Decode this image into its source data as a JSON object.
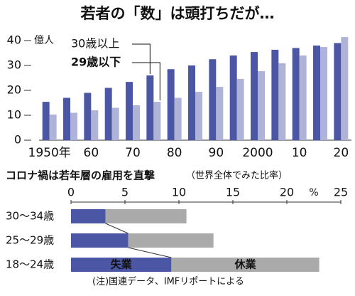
{
  "chart_data": [
    {
      "type": "bar",
      "title": "若者の「数」は頭打ちだが…",
      "y_unit": "億人",
      "categories": [
        "1950年",
        null,
        "60",
        null,
        "70",
        null,
        "80",
        null,
        "90",
        null,
        "2000",
        null,
        "10",
        null,
        "20"
      ],
      "series": [
        {
          "name": "30歳以上",
          "color": "#4b56a5",
          "values": [
            15.4,
            17,
            19,
            21,
            23.4,
            26,
            28.5,
            30,
            32.5,
            34,
            35.4,
            36.3,
            37,
            38,
            39
          ]
        },
        {
          "name": "29歳以下",
          "color": "#afb3d8",
          "values": [
            10.3,
            11,
            12,
            13,
            14,
            15.4,
            17,
            19.4,
            21.4,
            24.6,
            27.7,
            30.9,
            34,
            37.4,
            41.4
          ]
        }
      ],
      "ylim": [
        0,
        42
      ],
      "yticks": [
        0,
        10,
        20,
        30,
        40
      ]
    },
    {
      "type": "hbar-stacked",
      "title": "コロナ禍は若年層の雇用を直撃",
      "subtitle": "（世界全体でみた比率）",
      "x_unit": "%",
      "categories": [
        "30～34歳",
        "25～29歳",
        "18～24歳"
      ],
      "series": [
        {
          "name": "失業",
          "color": "#4b56a5",
          "values": [
            3.2,
            5.3,
            9.3
          ]
        },
        {
          "name": "休業",
          "color": "#aaaaaa",
          "values": [
            7.5,
            7.9,
            13.7
          ]
        }
      ],
      "xlim": [
        0,
        25
      ],
      "xticks": [
        0,
        5,
        10,
        15,
        20,
        25
      ],
      "note": "(注)国連データ、IMFリポートによる"
    }
  ]
}
